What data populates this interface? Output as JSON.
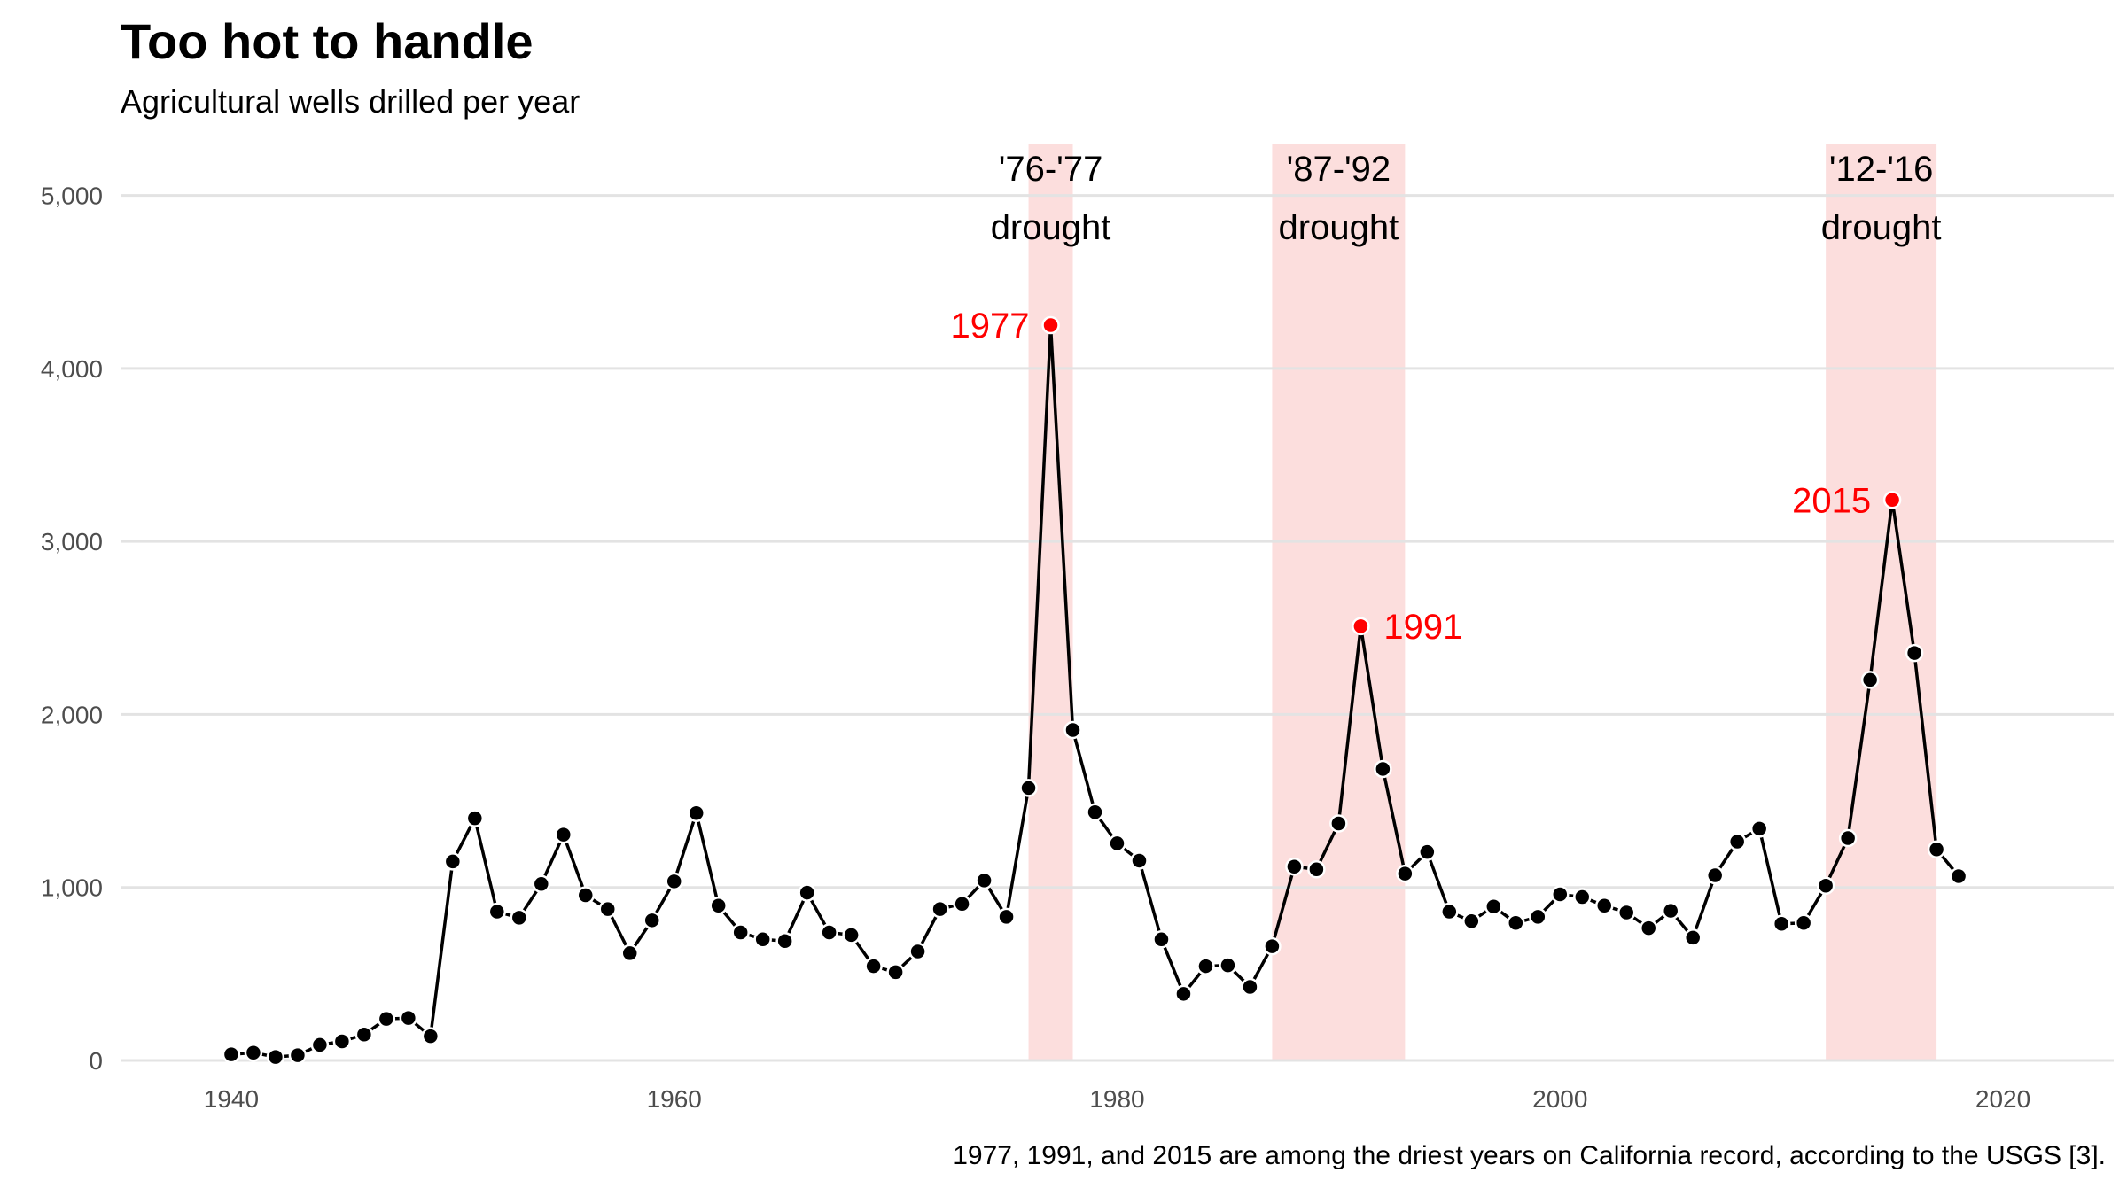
{
  "chart_data": {
    "type": "line",
    "title": "Too hot to handle",
    "subtitle": "Agricultural wells drilled per year",
    "caption": "1977, 1991, and 2015 are among the driest years on California record, according to the USGS [3].",
    "xlabel": "",
    "ylabel": "",
    "xlim": [
      1935,
      2025
    ],
    "ylim": [
      0,
      5300
    ],
    "x_ticks": [
      1940,
      1960,
      1980,
      2000,
      2020
    ],
    "x_tick_labels": [
      "1940",
      "1960",
      "1980",
      "2000",
      "2020"
    ],
    "y_ticks": [
      0,
      1000,
      2000,
      3000,
      4000,
      5000
    ],
    "y_tick_labels": [
      "0",
      "1,000",
      "2,000",
      "3,000",
      "4,000",
      "5,000"
    ],
    "grid": "horizontal",
    "series": [
      {
        "x": [
          1940,
          1941,
          1942,
          1943,
          1944,
          1945,
          1946,
          1947,
          1948,
          1949,
          1950,
          1951,
          1952,
          1953,
          1954,
          1955,
          1956,
          1957,
          1958,
          1959,
          1960,
          1961,
          1962,
          1963,
          1964,
          1965,
          1966,
          1967,
          1968,
          1969,
          1970,
          1971,
          1972,
          1973,
          1974,
          1975,
          1976,
          1977,
          1978,
          1979,
          1980,
          1981,
          1982,
          1983,
          1984,
          1985,
          1986,
          1987,
          1988,
          1989,
          1990,
          1991,
          1992,
          1993,
          1994,
          1995,
          1996,
          1997,
          1998,
          1999,
          2000,
          2001,
          2002,
          2003,
          2004,
          2005,
          2006,
          2007,
          2008,
          2009,
          2010,
          2011,
          2012,
          2013,
          2014,
          2015,
          2016,
          2017,
          2018
        ],
        "values": [
          35,
          45,
          20,
          30,
          90,
          110,
          150,
          240,
          245,
          140,
          1150,
          1400,
          860,
          825,
          1020,
          1305,
          955,
          875,
          620,
          810,
          1035,
          1430,
          895,
          740,
          700,
          690,
          970,
          740,
          725,
          545,
          510,
          630,
          875,
          905,
          1040,
          830,
          1575,
          4250,
          1910,
          1435,
          1255,
          1155,
          700,
          385,
          545,
          550,
          425,
          660,
          1120,
          1105,
          1370,
          2510,
          1685,
          1080,
          1205,
          860,
          805,
          890,
          795,
          830,
          960,
          945,
          895,
          855,
          765,
          865,
          710,
          1070,
          1265,
          1340,
          790,
          795,
          1010,
          1285,
          2200,
          3240,
          2355,
          1220,
          1065
        ],
        "color": "#000000"
      }
    ],
    "drought_bands": [
      {
        "start": 1976,
        "end": 1978,
        "label_line1": "'76-'77",
        "label_line2": "drought"
      },
      {
        "start": 1987,
        "end": 1993,
        "label_line1": "'87-'92",
        "label_line2": "drought"
      },
      {
        "start": 2012,
        "end": 2017,
        "label_line1": "'12-'16",
        "label_line2": "drought"
      }
    ],
    "highlights": [
      {
        "year": 1977,
        "value": 4250,
        "label": "1977",
        "side": "left"
      },
      {
        "year": 1991,
        "value": 2510,
        "label": "1991",
        "side": "right"
      },
      {
        "year": 2015,
        "value": 3240,
        "label": "2015",
        "side": "left"
      }
    ],
    "colors": {
      "band": "#fcdedd",
      "highlight": "#ff0000",
      "grid": "#e3e3e3",
      "line": "#000000"
    }
  }
}
